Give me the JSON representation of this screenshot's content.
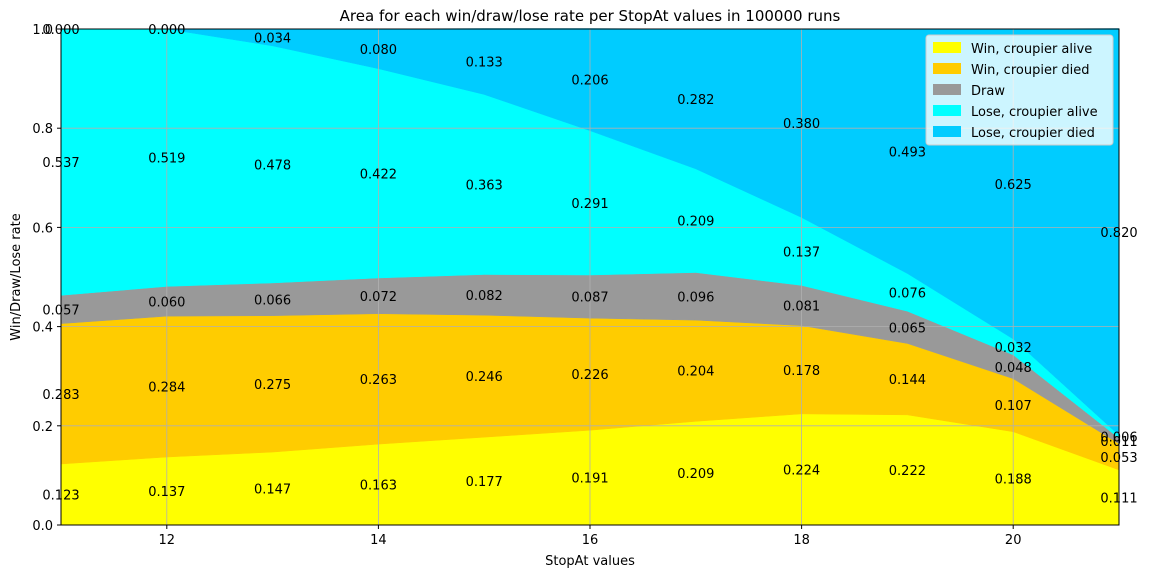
{
  "chart_data": {
    "type": "area",
    "title": "Area for each win/draw/lose rate per StopAt values in 100000 runs",
    "xlabel": "StopAt values",
    "ylabel": "Win/Draw/Lose rate",
    "x": [
      11,
      12,
      13,
      14,
      15,
      16,
      17,
      18,
      19,
      20,
      21
    ],
    "xlim": [
      11,
      21
    ],
    "ylim": [
      0,
      1
    ],
    "xticks": [
      12,
      14,
      16,
      18,
      20
    ],
    "yticks": [
      0.0,
      0.2,
      0.4,
      0.6,
      0.8,
      1.0
    ],
    "xtick_labels": [
      "12",
      "14",
      "16",
      "18",
      "20"
    ],
    "ytick_labels": [
      "0.0",
      "0.2",
      "0.4",
      "0.6",
      "0.8",
      "1.0"
    ],
    "grid": true,
    "stacked": true,
    "legend_position": "top-right",
    "series": [
      {
        "name": "Win, croupier alive",
        "color": "#ffff00",
        "values": [
          0.123,
          0.137,
          0.147,
          0.163,
          0.177,
          0.191,
          0.209,
          0.224,
          0.222,
          0.188,
          0.111
        ],
        "labels": [
          "0.123",
          "0.137",
          "0.147",
          "0.163",
          "0.177",
          "0.191",
          "0.209",
          "0.224",
          "0.222",
          "0.188",
          "0.111"
        ]
      },
      {
        "name": "Win, croupier died",
        "color": "#ffcc00",
        "values": [
          0.283,
          0.284,
          0.275,
          0.263,
          0.246,
          0.226,
          0.204,
          0.178,
          0.144,
          0.107,
          0.053
        ],
        "labels": [
          "0.283",
          "0.284",
          "0.275",
          "0.263",
          "0.246",
          "0.226",
          "0.204",
          "0.178",
          "0.144",
          "0.107",
          "0.053"
        ]
      },
      {
        "name": "Draw",
        "color": "#999999",
        "values": [
          0.057,
          0.06,
          0.066,
          0.072,
          0.082,
          0.087,
          0.096,
          0.081,
          0.065,
          0.048,
          0.011
        ],
        "labels": [
          "0.057",
          "0.060",
          "0.066",
          "0.072",
          "0.082",
          "0.087",
          "0.096",
          "0.081",
          "0.065",
          "0.048",
          "0.011"
        ]
      },
      {
        "name": "Lose, croupier alive",
        "color": "#00ffff",
        "values": [
          0.537,
          0.519,
          0.478,
          0.422,
          0.363,
          0.291,
          0.209,
          0.137,
          0.076,
          0.032,
          0.006
        ],
        "labels": [
          "0.537",
          "0.519",
          "0.478",
          "0.422",
          "0.363",
          "0.291",
          "0.209",
          "0.137",
          "0.076",
          "0.032",
          "0.006"
        ]
      },
      {
        "name": "Lose, croupier died",
        "color": "#00ccff",
        "values": [
          0.0,
          0.0,
          0.034,
          0.08,
          0.133,
          0.206,
          0.282,
          0.38,
          0.493,
          0.625,
          0.82
        ],
        "labels": [
          "0.000",
          "0.000",
          "0.034",
          "0.080",
          "0.133",
          "0.206",
          "0.282",
          "0.380",
          "0.493",
          "0.625",
          "0.820"
        ]
      }
    ]
  }
}
